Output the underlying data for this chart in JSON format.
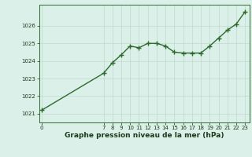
{
  "x": [
    0,
    7,
    8,
    9,
    10,
    11,
    12,
    13,
    14,
    15,
    16,
    17,
    18,
    19,
    20,
    21,
    22,
    23
  ],
  "y": [
    1021.2,
    1023.3,
    1023.9,
    1024.35,
    1024.85,
    1024.75,
    1025.0,
    1025.0,
    1024.85,
    1024.5,
    1024.45,
    1024.45,
    1024.45,
    1024.85,
    1025.3,
    1025.75,
    1026.1,
    1026.8
  ],
  "line_color": "#2d6a2d",
  "marker": "+",
  "marker_size": 4.0,
  "bg_color": "#daf0e8",
  "grid_color": "#c0d8cc",
  "xlabel": "Graphe pression niveau de la mer (hPa)",
  "xlabel_fontsize": 6.5,
  "xlabel_bold": true,
  "ylim": [
    1020.5,
    1027.2
  ],
  "yticks": [
    1021,
    1022,
    1023,
    1024,
    1025,
    1026
  ],
  "xticks": [
    0,
    7,
    8,
    9,
    10,
    11,
    12,
    13,
    14,
    15,
    16,
    17,
    18,
    19,
    20,
    21,
    22,
    23
  ],
  "tick_fontsize": 5.0,
  "linewidth": 1.0
}
